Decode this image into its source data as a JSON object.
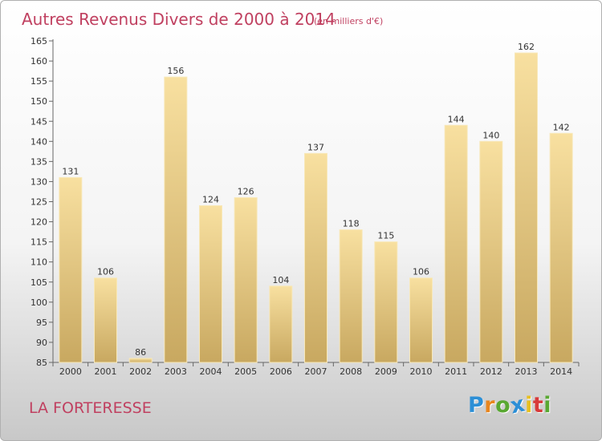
{
  "chart_data": {
    "type": "bar",
    "title": "Autres Revenus Divers de 2000 à 2014",
    "subtitle": "(en milliers d'€)",
    "categories": [
      "2000",
      "2001",
      "2002",
      "2003",
      "2004",
      "2005",
      "2006",
      "2007",
      "2008",
      "2009",
      "2010",
      "2011",
      "2012",
      "2013",
      "2014"
    ],
    "values": [
      131,
      106,
      86,
      156,
      124,
      126,
      104,
      137,
      118,
      115,
      106,
      144,
      140,
      162,
      142
    ],
    "ylim": [
      85,
      165
    ],
    "yticks": [
      85,
      90,
      95,
      100,
      105,
      110,
      115,
      120,
      125,
      130,
      135,
      140,
      145,
      150,
      155,
      160,
      165
    ],
    "grid": false,
    "bar_color": "#f0d48c",
    "xlabel": "",
    "ylabel": ""
  },
  "place": "LA FORTERESSE",
  "logo": {
    "letters": [
      "P",
      "r",
      "o",
      "x",
      "i",
      "t",
      "i"
    ],
    "colors": [
      "#2c8fd6",
      "#e8861e",
      "#59a832",
      "#2c8fd6",
      "#e8c020",
      "#d83a3a",
      "#59a832"
    ]
  },
  "colors": {
    "title": "#c04060",
    "axis": "#666666"
  }
}
